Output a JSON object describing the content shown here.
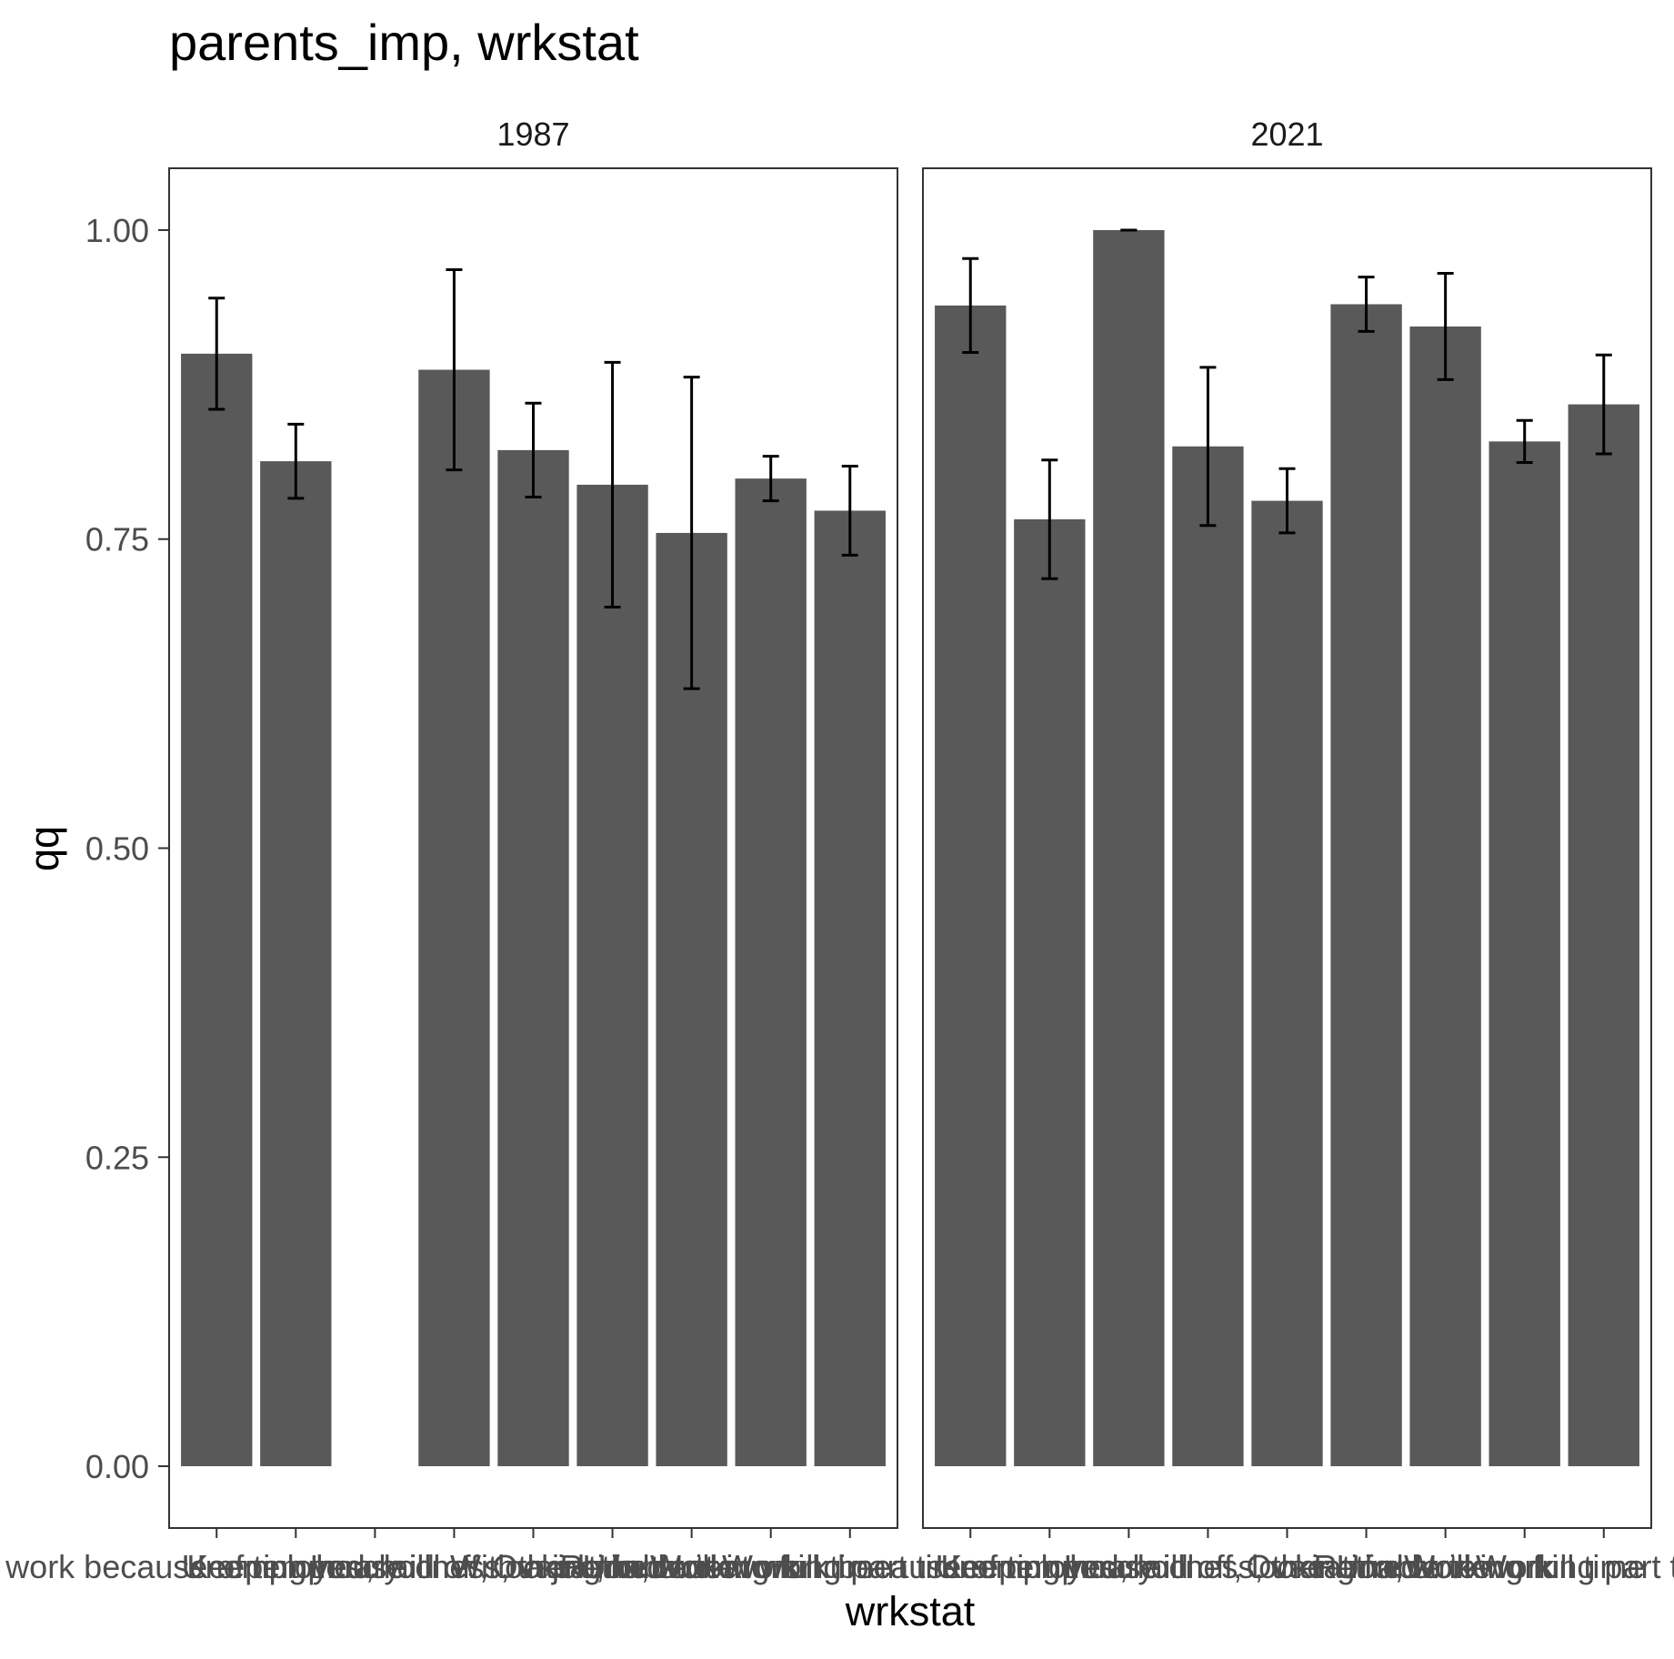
{
  "chart_data": {
    "type": "bar",
    "title": "parents_imp, wrkstat",
    "xlabel": "wrkstat",
    "ylabel": "qq",
    "ylim": [
      -0.05,
      1.05
    ],
    "yticks": [
      "0.00",
      "0.25",
      "0.50",
      "0.75",
      "1.00"
    ],
    "ytick_values": [
      0,
      0.25,
      0.5,
      0.75,
      1.0
    ],
    "grid": false,
    "colors": {
      "bar": "#595959",
      "errorbar": "#000000",
      "panel_border": "#333333",
      "axis_text": "#4d4d4d"
    },
    "categories": [
      "With a job, but not at work because of temporary illness, vacation, strike",
      "Keeping house",
      "In school",
      "Unemployed, laid off, looking for work",
      "Other",
      "Retired",
      "Unable to work",
      "Working full time",
      "Working part time"
    ],
    "facets": [
      {
        "label": "1987",
        "values": [
          0.9,
          0.813,
          null,
          0.887,
          0.822,
          0.794,
          0.755,
          0.799,
          0.773
        ],
        "lower": [
          0.855,
          0.783,
          null,
          0.806,
          0.784,
          0.695,
          0.629,
          0.781,
          0.737
        ],
        "upper": [
          0.945,
          0.843,
          null,
          0.968,
          0.86,
          0.893,
          0.881,
          0.817,
          0.809
        ]
      },
      {
        "label": "2021",
        "values": [
          0.939,
          0.766,
          1.0,
          0.825,
          0.781,
          0.94,
          0.922,
          0.829,
          0.859
        ],
        "lower": [
          0.901,
          0.718,
          1.0,
          0.761,
          0.755,
          0.918,
          0.879,
          0.812,
          0.819
        ],
        "upper": [
          0.977,
          0.814,
          1.0,
          0.889,
          0.807,
          0.962,
          0.965,
          0.846,
          0.899
        ]
      }
    ]
  }
}
